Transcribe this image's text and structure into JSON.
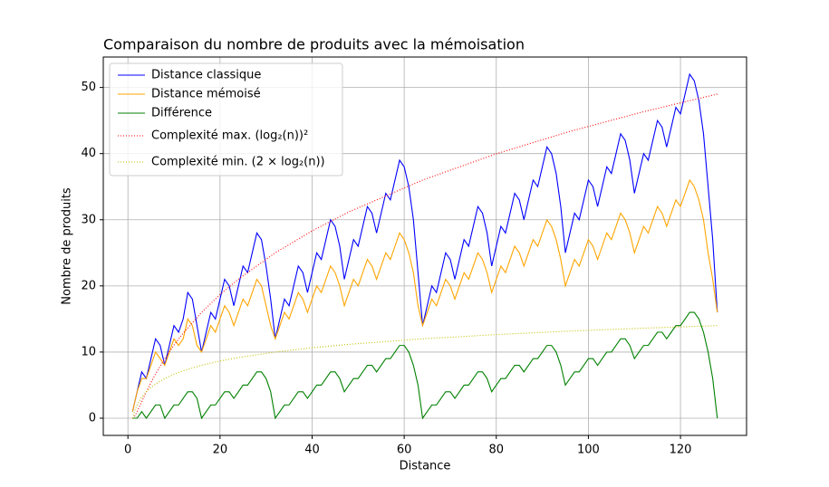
{
  "chart_data": {
    "type": "line",
    "title": "Comparaison du nombre de produits avec la mémoisation",
    "x_label": "Distance",
    "y_label": "Nombre de produits",
    "x": [
      1,
      2,
      3,
      4,
      5,
      6,
      7,
      8,
      9,
      10,
      11,
      12,
      13,
      14,
      15,
      16,
      17,
      18,
      19,
      20,
      21,
      22,
      23,
      24,
      25,
      26,
      27,
      28,
      29,
      30,
      31,
      32,
      33,
      34,
      35,
      36,
      37,
      38,
      39,
      40,
      41,
      42,
      43,
      44,
      45,
      46,
      47,
      48,
      49,
      50,
      51,
      52,
      53,
      54,
      55,
      56,
      57,
      58,
      59,
      60,
      61,
      62,
      63,
      64,
      65,
      66,
      67,
      68,
      69,
      70,
      71,
      72,
      73,
      74,
      75,
      76,
      77,
      78,
      79,
      80,
      81,
      82,
      83,
      84,
      85,
      86,
      87,
      88,
      89,
      90,
      91,
      92,
      93,
      94,
      95,
      96,
      97,
      98,
      99,
      100,
      101,
      102,
      103,
      104,
      105,
      106,
      107,
      108,
      109,
      110,
      111,
      112,
      113,
      114,
      115,
      116,
      117,
      118,
      119,
      120,
      121,
      122,
      123,
      124,
      125,
      126,
      127,
      128
    ],
    "series": [
      {
        "name": "Distance classique",
        "color": "#0000ff",
        "style": "solid",
        "values": [
          1,
          4,
          7,
          6,
          9,
          12,
          11,
          8,
          11,
          14,
          13,
          15,
          19,
          18,
          14,
          10,
          13,
          16,
          15,
          18,
          21,
          20,
          17,
          20,
          23,
          22,
          25,
          28,
          27,
          23,
          18,
          12,
          15,
          18,
          17,
          20,
          23,
          22,
          19,
          22,
          25,
          24,
          27,
          30,
          29,
          26,
          21,
          24,
          27,
          26,
          29,
          32,
          31,
          28,
          31,
          34,
          33,
          36,
          39,
          38,
          35,
          30,
          22,
          14,
          17,
          20,
          19,
          22,
          25,
          24,
          21,
          24,
          27,
          26,
          29,
          32,
          31,
          28,
          23,
          26,
          29,
          28,
          31,
          34,
          33,
          30,
          33,
          36,
          35,
          38,
          41,
          40,
          37,
          32,
          25,
          28,
          31,
          30,
          33,
          36,
          35,
          32,
          35,
          38,
          37,
          40,
          43,
          42,
          39,
          34,
          37,
          40,
          39,
          42,
          45,
          44,
          41,
          44,
          47,
          46,
          49,
          52,
          51,
          48,
          43,
          35,
          27,
          16
        ]
      },
      {
        "name": "Distance mémoisé",
        "color": "#ffa500",
        "style": "solid",
        "values": [
          1,
          4,
          6,
          6,
          8,
          10,
          9,
          8,
          10,
          12,
          11,
          12,
          15,
          14,
          11,
          10,
          12,
          14,
          13,
          15,
          17,
          16,
          14,
          16,
          18,
          17,
          19,
          21,
          20,
          17,
          14,
          12,
          14,
          16,
          15,
          17,
          19,
          18,
          16,
          18,
          20,
          19,
          21,
          23,
          22,
          20,
          17,
          19,
          21,
          20,
          22,
          24,
          23,
          21,
          23,
          25,
          24,
          26,
          28,
          27,
          25,
          22,
          17,
          14,
          16,
          18,
          17,
          19,
          21,
          20,
          18,
          20,
          22,
          21,
          23,
          25,
          24,
          22,
          19,
          21,
          23,
          22,
          24,
          26,
          25,
          23,
          25,
          27,
          26,
          28,
          30,
          29,
          27,
          24,
          20,
          22,
          24,
          23,
          25,
          27,
          26,
          24,
          26,
          28,
          27,
          29,
          31,
          30,
          28,
          25,
          27,
          29,
          28,
          30,
          32,
          31,
          29,
          31,
          33,
          32,
          34,
          36,
          35,
          33,
          30,
          25,
          21,
          16
        ]
      },
      {
        "name": "Différence",
        "color": "#008000",
        "style": "solid",
        "values": [
          0,
          0,
          1,
          0,
          1,
          2,
          2,
          0,
          1,
          2,
          2,
          3,
          4,
          4,
          3,
          0,
          1,
          2,
          2,
          3,
          4,
          4,
          3,
          4,
          5,
          5,
          6,
          7,
          7,
          6,
          4,
          0,
          1,
          2,
          2,
          3,
          4,
          4,
          3,
          4,
          5,
          5,
          6,
          7,
          7,
          6,
          4,
          5,
          6,
          6,
          7,
          8,
          8,
          7,
          8,
          9,
          9,
          10,
          11,
          11,
          10,
          8,
          5,
          0,
          1,
          2,
          2,
          3,
          4,
          4,
          3,
          4,
          5,
          5,
          6,
          7,
          7,
          6,
          4,
          5,
          6,
          6,
          7,
          8,
          8,
          7,
          8,
          9,
          9,
          10,
          11,
          11,
          10,
          8,
          5,
          6,
          7,
          7,
          8,
          9,
          9,
          8,
          9,
          10,
          10,
          11,
          12,
          12,
          11,
          9,
          10,
          11,
          11,
          12,
          13,
          13,
          12,
          13,
          14,
          14,
          15,
          16,
          16,
          15,
          13,
          10,
          6,
          0
        ]
      },
      {
        "name": "Complexité max. (log₂(n))²",
        "color": "#ff0000",
        "style": "dotted",
        "x": [
          1,
          1.5,
          2,
          3,
          4,
          5,
          6,
          8,
          10,
          12,
          16,
          20,
          24,
          32,
          40,
          48,
          64,
          80,
          96,
          112,
          128
        ],
        "values": [
          0,
          0.34,
          1,
          2.51,
          4,
          5.39,
          6.68,
          9,
          11.04,
          12.85,
          16,
          18.68,
          21.02,
          25,
          28.32,
          31.19,
          36,
          39.97,
          43.36,
          46.34,
          49
        ]
      },
      {
        "name": "Complexité min. (2 × log₂(n))",
        "color": "#bfbf00",
        "style": "dotted",
        "x": [
          1,
          1.5,
          2,
          3,
          4,
          5,
          6,
          8,
          10,
          12,
          16,
          20,
          24,
          32,
          40,
          48,
          64,
          80,
          96,
          112,
          128
        ],
        "values": [
          0,
          1.17,
          2,
          3.17,
          4,
          4.64,
          5.17,
          6,
          6.64,
          7.17,
          8,
          8.64,
          9.17,
          10,
          10.64,
          11.17,
          12,
          12.64,
          13.17,
          13.61,
          14
        ]
      }
    ],
    "xlim": [
      -5.35,
      134.35
    ],
    "xticks": [
      0,
      20,
      40,
      60,
      80,
      100,
      120
    ],
    "ylim": [
      -2.6,
      54.6
    ],
    "yticks": [
      0,
      10,
      20,
      30,
      40,
      50
    ],
    "grid": true,
    "legend": "upper left"
  }
}
